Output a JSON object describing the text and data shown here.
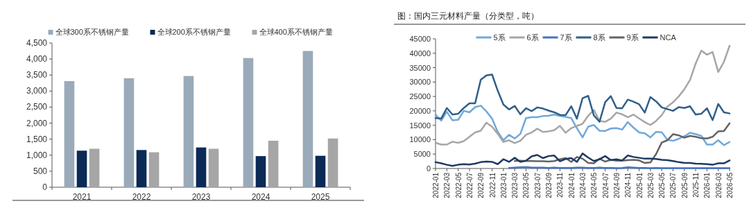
{
  "chart_data": [
    {
      "type": "bar",
      "categories": [
        "2021",
        "2022",
        "2023",
        "2024",
        "2025"
      ],
      "series": [
        {
          "name": "全球300系不锈钢产量",
          "color": "#9aaab9",
          "values": [
            3310,
            3400,
            3470,
            4030,
            4250
          ]
        },
        {
          "name": "全球200系不锈钢产量",
          "color": "#0b2a55",
          "values": [
            1140,
            1160,
            1240,
            970,
            980
          ]
        },
        {
          "name": "全球400系不锈钢产量",
          "color": "#a6a6a6",
          "values": [
            1200,
            1090,
            1200,
            1450,
            1520
          ]
        }
      ],
      "ylim": [
        0,
        4500
      ],
      "yticks": [
        0,
        {
          "value": 500,
          "label": "500"
        },
        {
          "value": 1000,
          "label": "1,000"
        },
        {
          "value": 1500,
          "label": "1,500"
        },
        {
          "value": 2000,
          "label": "2,000"
        },
        {
          "value": 2500,
          "label": "2,500"
        },
        {
          "value": 3000,
          "label": "3,000"
        },
        {
          "value": 3500,
          "label": "3,500"
        },
        {
          "value": 4000,
          "label": "4,000"
        },
        {
          "value": 4500,
          "label": "4,500"
        }
      ],
      "legend": "top"
    },
    {
      "type": "line",
      "title": "图：国内三元材料产量（分类型，吨）",
      "x": [
        "2022-01",
        "2022-02",
        "2022-03",
        "2022-04",
        "2022-05",
        "2022-06",
        "2022-07",
        "2022-08",
        "2022-09",
        "2022-10",
        "2022-11",
        "2022-12",
        "2023-01",
        "2023-02",
        "2023-03",
        "2023-04",
        "2023-05",
        "2023-06",
        "2023-07",
        "2023-08",
        "2023-09",
        "2023-10",
        "2023-11",
        "2023-12",
        "2024-01",
        "2024-02",
        "2024-03",
        "2024-04",
        "2024-05",
        "2024-06",
        "2024-07",
        "2024-08",
        "2024-09",
        "2024-10",
        "2024-11",
        "2024-12",
        "2025-01",
        "2025-02",
        "2025-03",
        "2025-04",
        "2025-05",
        "2025-06",
        "2025-07",
        "2025-08",
        "2025-09",
        "2025-10",
        "2025-11",
        "2025-12",
        "2026-01",
        "2026-02",
        "2026-03",
        "2026-04",
        "2026-05"
      ],
      "series": [
        {
          "name": "5系",
          "color": "#6fa8dc",
          "values": [
            18700,
            16600,
            19700,
            16700,
            16900,
            20000,
            19500,
            21300,
            21800,
            19800,
            17300,
            12700,
            9800,
            11700,
            10400,
            12000,
            17500,
            17800,
            17800,
            18200,
            18300,
            18700,
            18200,
            17900,
            17500,
            14000,
            10800,
            14500,
            15100,
            13100,
            13000,
            13900,
            14000,
            13500,
            16100,
            14200,
            12500,
            12200,
            10800,
            12700,
            12600,
            10000,
            9600,
            10300,
            11200,
            12400,
            11900,
            11300,
            8300,
            8300,
            9800,
            8100,
            9200
          ]
        },
        {
          "name": "6系",
          "color": "#a6a6a6",
          "values": [
            8900,
            8300,
            8300,
            9300,
            8900,
            9500,
            11000,
            12500,
            13100,
            15900,
            14500,
            12000,
            9200,
            9800,
            8800,
            9600,
            11700,
            12500,
            13800,
            12700,
            12900,
            13300,
            14800,
            12400,
            14000,
            14800,
            15500,
            18300,
            20300,
            16500,
            16200,
            17300,
            19400,
            18800,
            17800,
            18700,
            17400,
            16100,
            15100,
            16500,
            18500,
            21500,
            23000,
            25000,
            27500,
            30700,
            36400,
            40900,
            39500,
            40400,
            33500,
            37000,
            42600
          ]
        },
        {
          "name": "7系",
          "color": "#4472c4",
          "values": [
            null,
            null,
            null,
            null,
            null,
            null,
            null,
            null,
            null,
            null,
            null,
            null,
            null,
            200,
            300,
            400,
            500,
            300,
            300,
            300,
            200,
            300,
            200,
            200,
            200,
            300,
            300,
            200,
            200,
            300,
            200,
            200,
            100,
            200,
            400,
            300,
            200,
            200,
            100,
            200,
            100,
            100,
            100,
            100,
            100,
            100,
            100,
            100,
            100,
            100,
            100,
            100,
            100
          ]
        },
        {
          "name": "8系",
          "color": "#2e5f8a",
          "values": [
            17500,
            17300,
            21000,
            18700,
            19000,
            21000,
            22600,
            22600,
            30800,
            32300,
            32600,
            27000,
            22200,
            20500,
            21700,
            18800,
            20900,
            19900,
            21200,
            20800,
            20100,
            19500,
            18600,
            18500,
            21600,
            17300,
            24400,
            25200,
            18400,
            16200,
            23000,
            25100,
            21000,
            20900,
            23900,
            23200,
            22300,
            19400,
            24800,
            23300,
            21200,
            20600,
            20000,
            21300,
            21000,
            21600,
            18700,
            19000,
            20900,
            16800,
            22400,
            19500,
            19100
          ]
        },
        {
          "name": "9系",
          "color": "#636363",
          "values": [
            null,
            null,
            null,
            null,
            null,
            null,
            null,
            null,
            null,
            null,
            null,
            null,
            null,
            null,
            2600,
            2700,
            2600,
            2600,
            2500,
            2500,
            2400,
            2600,
            3200,
            3600,
            2300,
            4000,
            3400,
            1900,
            1800,
            3400,
            2400,
            3000,
            2700,
            2700,
            2900,
            3000,
            2800,
            1900,
            2100,
            5000,
            9000,
            9800,
            11900,
            11500,
            10700,
            11300,
            11000,
            10500,
            10400,
            11000,
            12900,
            13000,
            15700
          ]
        },
        {
          "name": "NCA",
          "color": "#1f3864",
          "values": [
            2200,
            1800,
            1300,
            900,
            1300,
            1500,
            1400,
            1700,
            2200,
            2400,
            2300,
            1500,
            3200,
            2300,
            3700,
            2300,
            2700,
            4200,
            4700,
            3600,
            4300,
            4500,
            2500,
            3300,
            3600,
            2300,
            5200,
            3800,
            2600,
            3200,
            4300,
            2900,
            3200,
            2800,
            4500,
            4000,
            3700,
            3400,
            3400,
            3300,
            3000,
            2900,
            2600,
            2200,
            1900,
            1900,
            1700,
            1600,
            1500,
            1300,
            1800,
            1800,
            2800
          ]
        }
      ],
      "xlim": [
        "2022-01",
        "2026-05"
      ],
      "xticks": [
        "2022-01",
        "2022-03",
        "2022-05",
        "2022-07",
        "2022-09",
        "2022-11",
        "2023-01",
        "2023-03",
        "2023-05",
        "2023-07",
        "2023-09",
        "2023-11",
        "2024-01",
        "2024-03",
        "2024-05",
        "2024-07",
        "2024-09",
        "2024-11",
        "2025-01",
        "2025-03",
        "2025-05",
        "2025-07",
        "2025-09",
        "2025-11",
        "2026-01",
        "2026-03",
        "2026-05"
      ],
      "ylim": [
        0,
        45000
      ],
      "yticks": [
        0,
        5000,
        10000,
        15000,
        20000,
        25000,
        30000,
        35000,
        40000,
        45000
      ],
      "legend": "top"
    }
  ]
}
